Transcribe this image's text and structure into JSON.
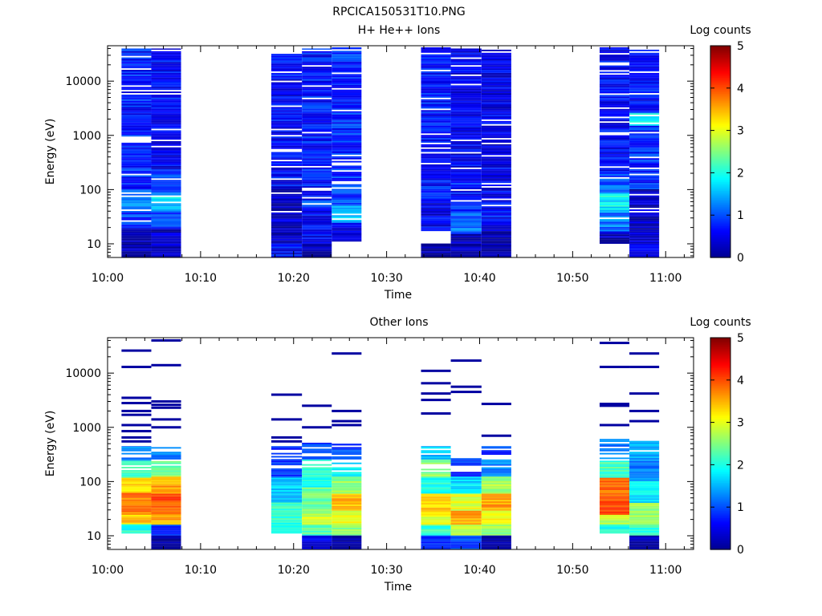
{
  "page_title": "RPCICA150531T10.PNG",
  "colorscale": {
    "stops": [
      {
        "value": 0,
        "color": "#00008f"
      },
      {
        "value": 0.625,
        "color": "#0000ff"
      },
      {
        "value": 1.875,
        "color": "#00ffff"
      },
      {
        "value": 2.5,
        "color": "#80ff80"
      },
      {
        "value": 3.125,
        "color": "#ffff00"
      },
      {
        "value": 4.375,
        "color": "#ff0000"
      },
      {
        "value": 5,
        "color": "#800000"
      }
    ]
  },
  "chart_data": [
    {
      "type": "heatmap",
      "title": "H+ He++ Ions",
      "xlabel": "Time",
      "ylabel": "Energy (eV)",
      "y_scale": "log",
      "ylim": [
        5.6,
        45000
      ],
      "xlim": [
        "10:00",
        "11:03"
      ],
      "x_ticks": [
        "10:00",
        "10:10",
        "10:20",
        "10:30",
        "10:40",
        "10:50",
        "11:00"
      ],
      "y_ticks": [
        "10",
        "100",
        "1000",
        "10000"
      ],
      "colorbar": {
        "label": "Log counts",
        "range": [
          0,
          5
        ],
        "ticks": [
          "0",
          "1",
          "2",
          "3",
          "4",
          "5"
        ]
      },
      "columns": [
        {
          "start": "10:01.5",
          "end": "10:04.7",
          "top_energy": 40000,
          "bottom_energy": 5.6,
          "bands": [
            [
              5.6,
              20,
              0.2
            ],
            [
              20,
              45,
              0.9
            ],
            [
              45,
              100,
              1.3
            ],
            [
              100,
              1000,
              0.8
            ],
            [
              1000,
              40000,
              0.7
            ]
          ]
        },
        {
          "start": "10:04.7",
          "end": "10:07.9",
          "top_energy": 40000,
          "bottom_energy": 5.6,
          "bands": [
            [
              5.6,
              20,
              0.3
            ],
            [
              20,
              40,
              1.0
            ],
            [
              40,
              80,
              1.7
            ],
            [
              80,
              200,
              1.1
            ],
            [
              200,
              40000,
              0.6
            ]
          ]
        },
        {
          "start": "10:17.6",
          "end": "10:20.9",
          "top_energy": 32000,
          "bottom_energy": 5.6,
          "bands": [
            [
              5.6,
              10,
              0.6
            ],
            [
              10,
              20,
              0.2
            ],
            [
              20,
              100,
              0.3
            ],
            [
              100,
              32000,
              0.6
            ]
          ]
        },
        {
          "start": "10:20.9",
          "end": "10:24.1",
          "top_energy": 40000,
          "bottom_energy": 5.6,
          "bands": [
            [
              5.6,
              10,
              0.1
            ],
            [
              10,
              50,
              0.6
            ],
            [
              50,
              65,
              0.9
            ],
            [
              65,
              40000,
              0.7
            ]
          ]
        },
        {
          "start": "10:24.1",
          "end": "10:27.3",
          "top_energy": 42000,
          "bottom_energy": 11,
          "bands": [
            [
              11,
              25,
              0.4
            ],
            [
              25,
              50,
              1.5
            ],
            [
              50,
              200,
              0.9
            ],
            [
              200,
              42000,
              0.8
            ]
          ]
        },
        {
          "start": "10:33.7",
          "end": "10:36.9",
          "top_energy": 42000,
          "bottom_energy": 5.6,
          "bands": [
            [
              5.6,
              10,
              0.1
            ],
            [
              17,
              60,
              0.5
            ],
            [
              60,
              42000,
              0.7
            ]
          ]
        },
        {
          "start": "10:36.9",
          "end": "10:40.2",
          "top_energy": 40000,
          "bottom_energy": 5.6,
          "bands": [
            [
              5.6,
              15,
              0.2
            ],
            [
              15,
              40,
              1.1
            ],
            [
              40,
              150,
              0.7
            ],
            [
              150,
              40000,
              0.5
            ]
          ]
        },
        {
          "start": "10:40.2",
          "end": "10:43.4",
          "top_energy": 38000,
          "bottom_energy": 5.6,
          "bands": [
            [
              5.6,
              17,
              0.1
            ],
            [
              17,
              100,
              0.6
            ],
            [
              100,
              38000,
              0.5
            ]
          ]
        },
        {
          "start": "10:52.9",
          "end": "10:56.1",
          "top_energy": 42000,
          "bottom_energy": 10,
          "bands": [
            [
              10,
              17,
              0.2
            ],
            [
              17,
              40,
              1.2
            ],
            [
              40,
              90,
              1.8
            ],
            [
              90,
              200,
              1.1
            ],
            [
              200,
              42000,
              0.6
            ]
          ]
        },
        {
          "start": "10:56.1",
          "end": "10:59.3",
          "top_energy": 38000,
          "bottom_energy": 5.6,
          "bands": [
            [
              5.6,
              10,
              0.5
            ],
            [
              10,
              100,
              0.3
            ],
            [
              100,
              1500,
              0.8
            ],
            [
              1500,
              2500,
              2.0
            ],
            [
              2500,
              38000,
              0.7
            ]
          ]
        }
      ]
    },
    {
      "type": "heatmap",
      "title": "Other Ions",
      "xlabel": "Time",
      "ylabel": "Energy (eV)",
      "y_scale": "log",
      "ylim": [
        5.6,
        45000
      ],
      "xlim": [
        "10:00",
        "11:03"
      ],
      "x_ticks": [
        "10:00",
        "10:10",
        "10:20",
        "10:30",
        "10:40",
        "10:50",
        "11:00"
      ],
      "y_ticks": [
        "10",
        "100",
        "1000",
        "10000"
      ],
      "colorbar": {
        "label": "Log counts",
        "range": [
          0,
          5
        ],
        "ticks": [
          "0",
          "1",
          "2",
          "3",
          "4",
          "5"
        ]
      },
      "columns": [
        {
          "start": "10:01.5",
          "end": "10:04.7",
          "top_energy": 450,
          "bottom_energy": 11,
          "bands": [
            [
              11,
              16,
              2.0
            ],
            [
              16,
              25,
              3.4
            ],
            [
              25,
              60,
              3.8
            ],
            [
              60,
              120,
              3.3
            ],
            [
              120,
              250,
              2.2
            ],
            [
              250,
              450,
              1.2
            ]
          ],
          "sparse_energies": [
            26000,
            13000,
            3500,
            2800,
            2000,
            1700,
            1100,
            850,
            650,
            550
          ]
        },
        {
          "start": "10:04.7",
          "end": "10:07.9",
          "top_energy": 450,
          "bottom_energy": 5.6,
          "bands": [
            [
              5.6,
              10,
              0.1
            ],
            [
              10,
              16,
              0.8
            ],
            [
              16,
              25,
              3.5
            ],
            [
              25,
              60,
              4.0
            ],
            [
              60,
              120,
              3.6
            ],
            [
              120,
              250,
              2.4
            ],
            [
              250,
              450,
              1.3
            ]
          ],
          "sparse_energies": [
            40000,
            14000,
            3000,
            2600,
            2300,
            1400,
            1000
          ]
        },
        {
          "start": "10:17.6",
          "end": "10:20.9",
          "top_energy": 450,
          "bottom_energy": 11,
          "bands": [
            [
              11,
              16,
              1.9
            ],
            [
              16,
              40,
              2.1
            ],
            [
              40,
              120,
              1.6
            ],
            [
              120,
              450,
              0.9
            ]
          ],
          "sparse_energies": [
            4000,
            1400,
            650,
            550
          ]
        },
        {
          "start": "10:20.9",
          "end": "10:24.1",
          "top_energy": 520,
          "bottom_energy": 5.6,
          "bands": [
            [
              5.6,
              10,
              0.5
            ],
            [
              10,
              16,
              2.3
            ],
            [
              16,
              25,
              2.9
            ],
            [
              25,
              80,
              2.4
            ],
            [
              80,
              250,
              2.0
            ],
            [
              250,
              520,
              0.9
            ]
          ],
          "sparse_energies": [
            2500,
            1000
          ]
        },
        {
          "start": "10:24.1",
          "end": "10:27.3",
          "top_energy": 500,
          "bottom_energy": 5.6,
          "bands": [
            [
              5.6,
              10,
              0.1
            ],
            [
              10,
              16,
              2.6
            ],
            [
              16,
              30,
              3.0
            ],
            [
              30,
              60,
              3.5
            ],
            [
              60,
              120,
              2.6
            ],
            [
              120,
              250,
              1.8
            ],
            [
              250,
              500,
              1.0
            ]
          ],
          "sparse_energies": [
            23000,
            2000,
            1300,
            1100
          ]
        },
        {
          "start": "10:33.7",
          "end": "10:36.9",
          "top_energy": 450,
          "bottom_energy": 5.6,
          "bands": [
            [
              5.6,
              10,
              0.7
            ],
            [
              10,
              16,
              2.1
            ],
            [
              16,
              25,
              3.0
            ],
            [
              25,
              60,
              3.4
            ],
            [
              60,
              120,
              2.0
            ],
            [
              120,
              250,
              2.6
            ],
            [
              250,
              450,
              1.6
            ]
          ],
          "sparse_energies": [
            11000,
            6500,
            4200,
            3200,
            1800
          ]
        },
        {
          "start": "10:36.9",
          "end": "10:40.2",
          "top_energy": 270,
          "bottom_energy": 5.6,
          "bands": [
            [
              5.6,
              10,
              1.0
            ],
            [
              10,
              16,
              2.9
            ],
            [
              16,
              30,
              3.6
            ],
            [
              30,
              60,
              3.0
            ],
            [
              60,
              120,
              1.7
            ],
            [
              120,
              270,
              0.8
            ]
          ],
          "sparse_energies": [
            17000,
            5600,
            4500
          ]
        },
        {
          "start": "10:40.2",
          "end": "10:43.4",
          "top_energy": 450,
          "bottom_energy": 5.6,
          "bands": [
            [
              5.6,
              10,
              0.1
            ],
            [
              10,
              16,
              2.6
            ],
            [
              16,
              30,
              3.1
            ],
            [
              30,
              60,
              3.6
            ],
            [
              60,
              120,
              2.7
            ],
            [
              120,
              250,
              1.3
            ],
            [
              250,
              450,
              0.9
            ]
          ],
          "sparse_energies": [
            2700,
            700
          ]
        },
        {
          "start": "10:52.9",
          "end": "10:56.1",
          "top_energy": 700,
          "bottom_energy": 11,
          "bands": [
            [
              11,
              16,
              2.0
            ],
            [
              16,
              25,
              2.8
            ],
            [
              25,
              50,
              4.0
            ],
            [
              50,
              120,
              3.8
            ],
            [
              120,
              250,
              2.2
            ],
            [
              250,
              700,
              1.2
            ]
          ],
          "sparse_energies": [
            36000,
            13000,
            2700,
            2500,
            1100
          ]
        },
        {
          "start": "10:56.1",
          "end": "10:59.3",
          "top_energy": 620,
          "bottom_energy": 5.6,
          "bands": [
            [
              5.6,
              10,
              0.2
            ],
            [
              10,
              16,
              2.1
            ],
            [
              16,
              40,
              2.6
            ],
            [
              40,
              100,
              1.8
            ],
            [
              100,
              250,
              1.2
            ],
            [
              250,
              620,
              1.5
            ]
          ],
          "sparse_energies": [
            23000,
            13000,
            4200,
            2000,
            1300
          ]
        }
      ]
    }
  ]
}
